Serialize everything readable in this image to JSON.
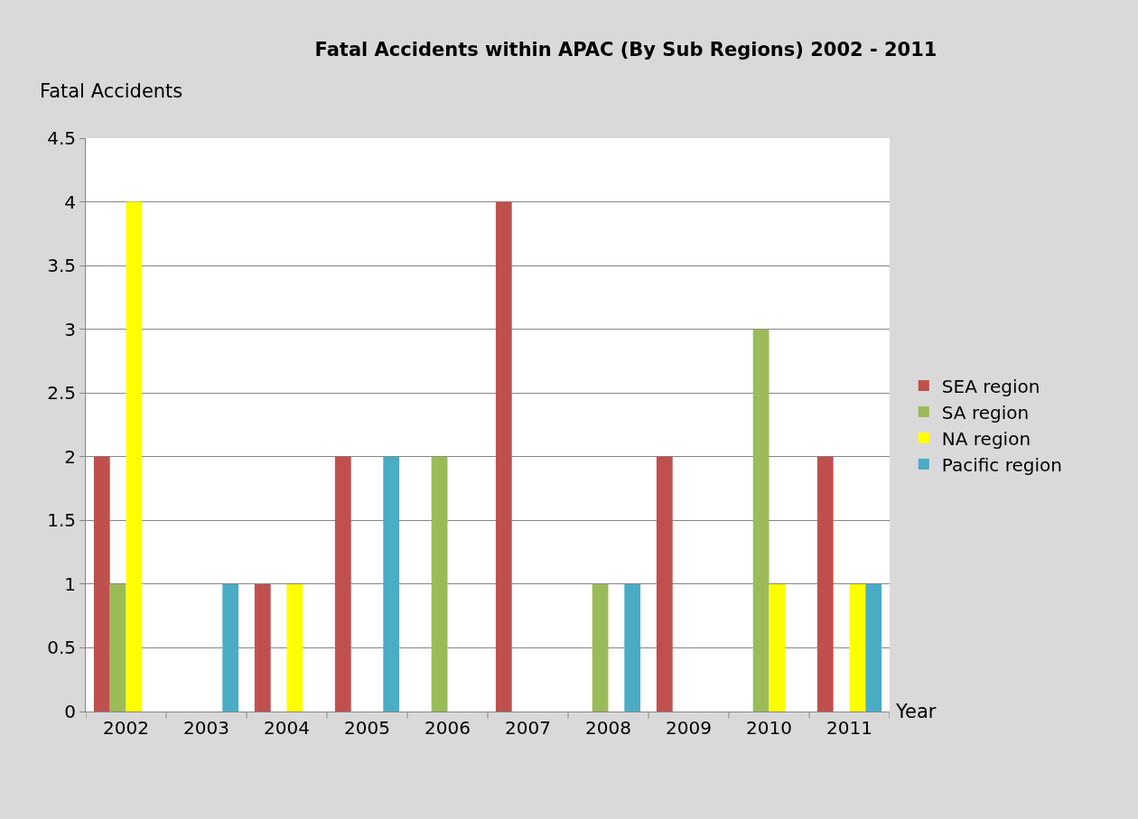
{
  "chart_data": {
    "type": "bar",
    "title": "Fatal Accidents within APAC (By Sub Regions) 2002 - 2011",
    "xlabel": "Year",
    "ylabel": "Fatal Accidents",
    "categories": [
      "2002",
      "2003",
      "2004",
      "2005",
      "2006",
      "2007",
      "2008",
      "2009",
      "2010",
      "2011"
    ],
    "series": [
      {
        "name": "SEA region",
        "color": "#c0504d",
        "values": [
          2,
          0,
          1,
          2,
          0,
          4,
          0,
          2,
          0,
          2
        ]
      },
      {
        "name": "SA region",
        "color": "#9bbb59",
        "values": [
          1,
          0,
          0,
          0,
          2,
          0,
          1,
          0,
          3,
          0
        ]
      },
      {
        "name": "NA region",
        "color": "#ffff00",
        "values": [
          4,
          0,
          1,
          0,
          0,
          0,
          0,
          0,
          1,
          1
        ]
      },
      {
        "name": "Pacific region",
        "color": "#4bacc6",
        "values": [
          0,
          1,
          0,
          2,
          0,
          0,
          1,
          0,
          0,
          1
        ]
      }
    ],
    "ylim": [
      0,
      4.5
    ],
    "yticks": [
      0,
      0.5,
      1,
      1.5,
      2,
      2.5,
      3,
      3.5,
      4,
      4.5
    ],
    "grid": "y",
    "legend": "right"
  }
}
